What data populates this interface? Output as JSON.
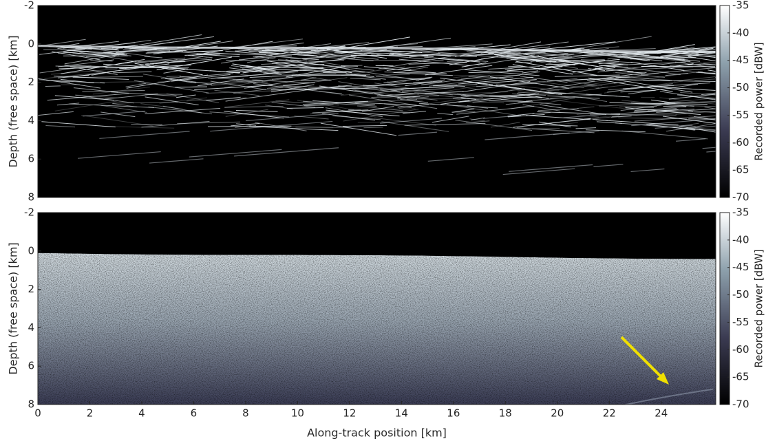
{
  "chart_data": [
    {
      "type": "image",
      "ylabel": "Depth (free space) [km]",
      "xlim": [
        0,
        26.1
      ],
      "ylim": [
        -2,
        8
      ],
      "yticks": [
        -2,
        0,
        2,
        4,
        6,
        8
      ],
      "colorbar": {
        "label": "Recorded power [dBW]",
        "lim": [
          -70,
          -35
        ],
        "ticks": [
          -35,
          -40,
          -45,
          -50,
          -55,
          -60,
          -65,
          -70
        ]
      }
    },
    {
      "type": "image",
      "ylabel": "Depth (free space) [km]",
      "xlabel": "Along-track position [km]",
      "xlim": [
        0,
        26.1
      ],
      "ylim": [
        -2,
        8
      ],
      "yticks": [
        -2,
        0,
        2,
        4,
        6,
        8
      ],
      "xticks": [
        0,
        2,
        4,
        6,
        8,
        10,
        12,
        14,
        16,
        18,
        20,
        22,
        24
      ],
      "colorbar": {
        "label": "Recorded power [dBW]",
        "lim": [
          -70,
          -35
        ],
        "ticks": [
          -35,
          -40,
          -45,
          -50,
          -55,
          -60,
          -65,
          -70
        ]
      }
    }
  ]
}
